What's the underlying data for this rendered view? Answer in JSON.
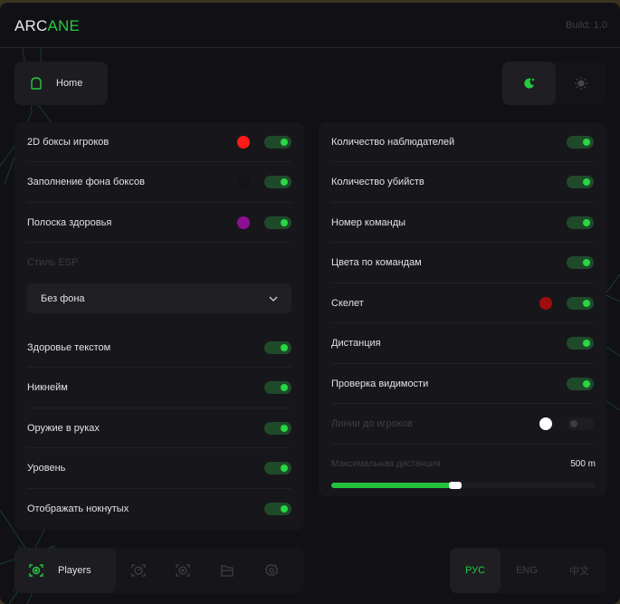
{
  "header": {
    "logo_a": "ARC",
    "logo_b": "ANE",
    "build": "Build: 1.0"
  },
  "home": {
    "label": "Home",
    "icon": "home-icon"
  },
  "theme": {
    "active": "dark",
    "icons": [
      "moon-icon",
      "sun-icon"
    ]
  },
  "left": {
    "rows_top": [
      {
        "label": "2D боксы игроков",
        "color": "#ff1a1a",
        "on": true
      },
      {
        "label": "Заполнение фона боксов",
        "color": "#141416",
        "on": true
      },
      {
        "label": "Полоска здоровья",
        "color": "#8e0e93",
        "on": true
      }
    ],
    "esp_style_label": "Стиль ESP",
    "esp_style_value": "Без фона",
    "rows_bottom": [
      {
        "label": "Здоровье текстом",
        "on": true
      },
      {
        "label": "Никнейм",
        "on": true
      },
      {
        "label": "Оружие в руках",
        "on": true
      },
      {
        "label": "Уровень",
        "on": true
      },
      {
        "label": "Отображать нокнутых",
        "on": true
      }
    ]
  },
  "right": {
    "rows": [
      {
        "label": "Количество наблюдателей",
        "on": true
      },
      {
        "label": "Количество убийств",
        "on": true
      },
      {
        "label": "Номер команды",
        "on": true
      },
      {
        "label": "Цвета по командам",
        "on": true
      },
      {
        "label": "Скелет",
        "color": "#a00d0d",
        "on": true
      },
      {
        "label": "Дистанция",
        "on": true
      },
      {
        "label": "Проверка видимости",
        "on": true
      },
      {
        "label": "Линии до игроков",
        "color": "#ffffff",
        "on": false,
        "disabled": true
      }
    ],
    "max_distance": {
      "label": "Максимальная дистанция",
      "value": "500 m",
      "fraction": 0.47
    }
  },
  "nav": {
    "active_label": "Players",
    "icons": [
      "players-icon",
      "aim-icon",
      "visuals-icon",
      "folder-icon",
      "settings-icon"
    ]
  },
  "languages": [
    "РУС",
    "ENG",
    "中文"
  ],
  "active_language": "РУС",
  "colors": {
    "accent": "#25c93f",
    "bg": "#111115",
    "panel": "#17171b"
  }
}
